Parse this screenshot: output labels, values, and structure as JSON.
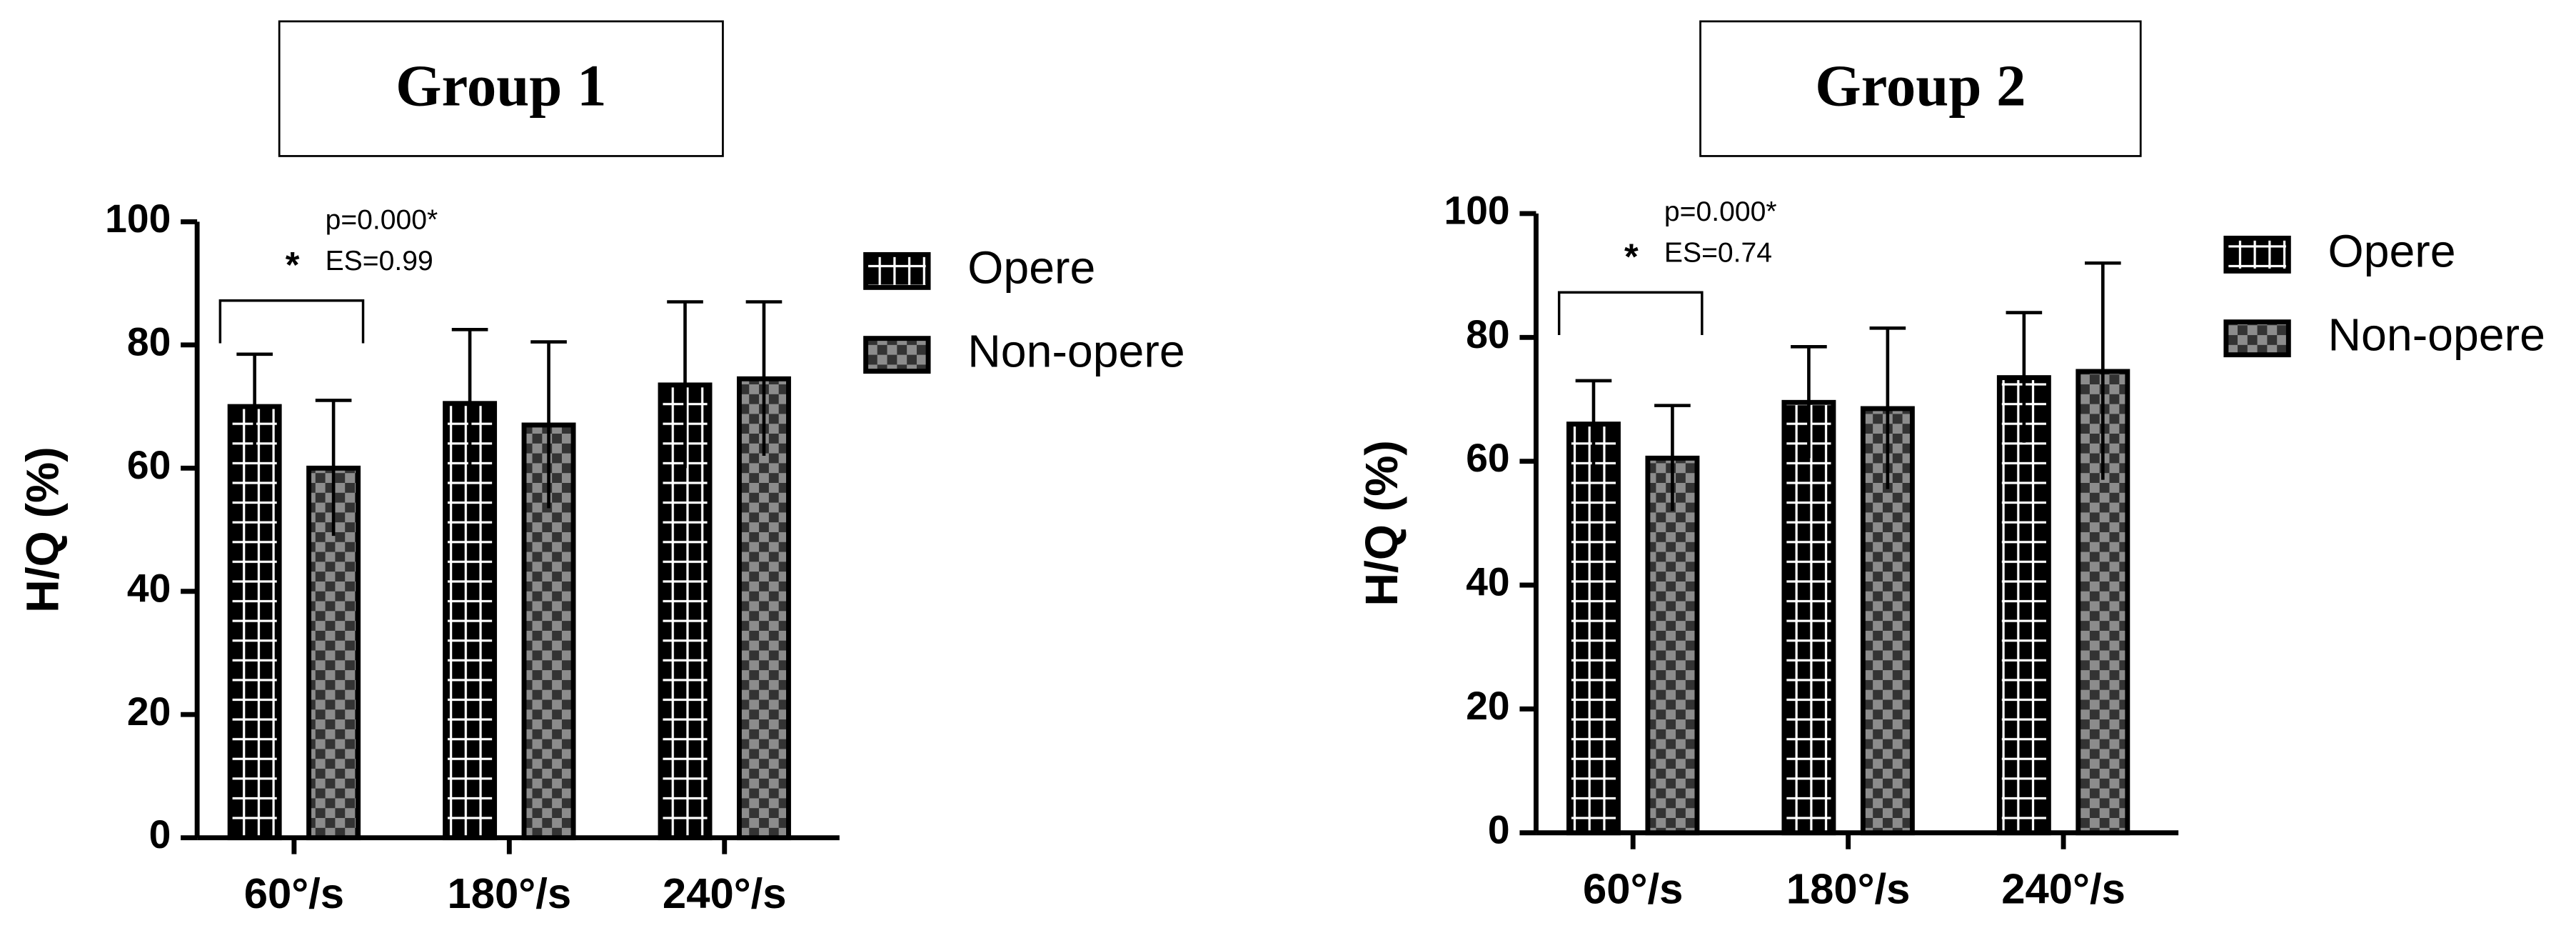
{
  "chart_data": [
    {
      "type": "bar",
      "title": "Group 1",
      "ylabel": "H/Q (%)",
      "categories": [
        "60°/s",
        "180°/s",
        "240°/s"
      ],
      "series": [
        {
          "name": "Opere",
          "color": "#000000",
          "values": [
            70,
            70.5,
            73.5
          ],
          "errors": [
            8.5,
            12,
            13.5
          ]
        },
        {
          "name": "Non-opere",
          "color": "#8c8c8c",
          "values": [
            60,
            67,
            74.5
          ],
          "errors": [
            11,
            13.5,
            12.5
          ]
        }
      ],
      "ylim": [
        0,
        100
      ],
      "yticks": [
        0,
        20,
        40,
        60,
        80,
        100
      ],
      "annotations": [
        "*",
        "p=0.000*",
        "ES=0.99"
      ]
    },
    {
      "type": "bar",
      "title": "Group 2",
      "ylabel": "H/Q (%)",
      "categories": [
        "60°/s",
        "180°/s",
        "240°/s"
      ],
      "series": [
        {
          "name": "Opere",
          "color": "#000000",
          "values": [
            66,
            69.5,
            73.5
          ],
          "errors": [
            7,
            9,
            10.5
          ]
        },
        {
          "name": "Non-opere",
          "color": "#8c8c8c",
          "values": [
            60.5,
            68.5,
            74.5
          ],
          "errors": [
            8.5,
            13,
            17.5
          ]
        }
      ],
      "ylim": [
        0,
        100
      ],
      "yticks": [
        0,
        20,
        40,
        60,
        80,
        100
      ],
      "annotations": [
        "*",
        "p=0.000*",
        "ES=0.74"
      ]
    }
  ]
}
